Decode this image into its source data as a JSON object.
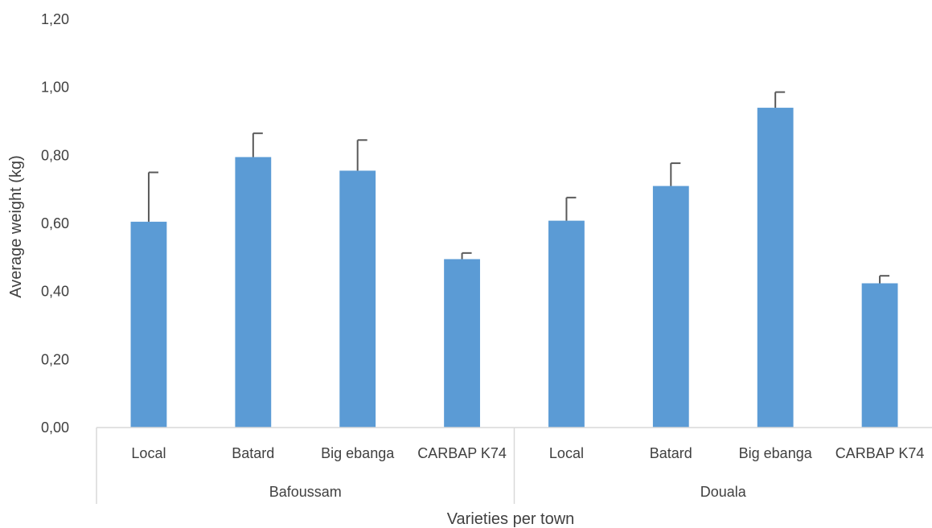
{
  "chart_data": {
    "type": "bar",
    "title": "",
    "xlabel": "Varieties per town",
    "ylabel": "Average weight (kg)",
    "ylim": [
      0,
      1.2
    ],
    "yticks": [
      "0,00",
      "0,20",
      "0,40",
      "0,60",
      "0,80",
      "1,00",
      "1,20"
    ],
    "grid": false,
    "legend": "none",
    "bar_color": "#5B9BD5",
    "error_bar_color": "#595959",
    "groups": [
      {
        "name": "Bafoussam",
        "categories": [
          "Local",
          "Batard",
          "Big ebanga",
          "CARBAP K74"
        ],
        "values": [
          0.605,
          0.795,
          0.755,
          0.495
        ],
        "errors": [
          0.145,
          0.07,
          0.09,
          0.018
        ]
      },
      {
        "name": "Douala",
        "categories": [
          "Local",
          "Batard",
          "Big ebanga",
          "CARBAP K74"
        ],
        "values": [
          0.608,
          0.71,
          0.94,
          0.424
        ],
        "errors": [
          0.068,
          0.067,
          0.046,
          0.022
        ]
      }
    ]
  }
}
